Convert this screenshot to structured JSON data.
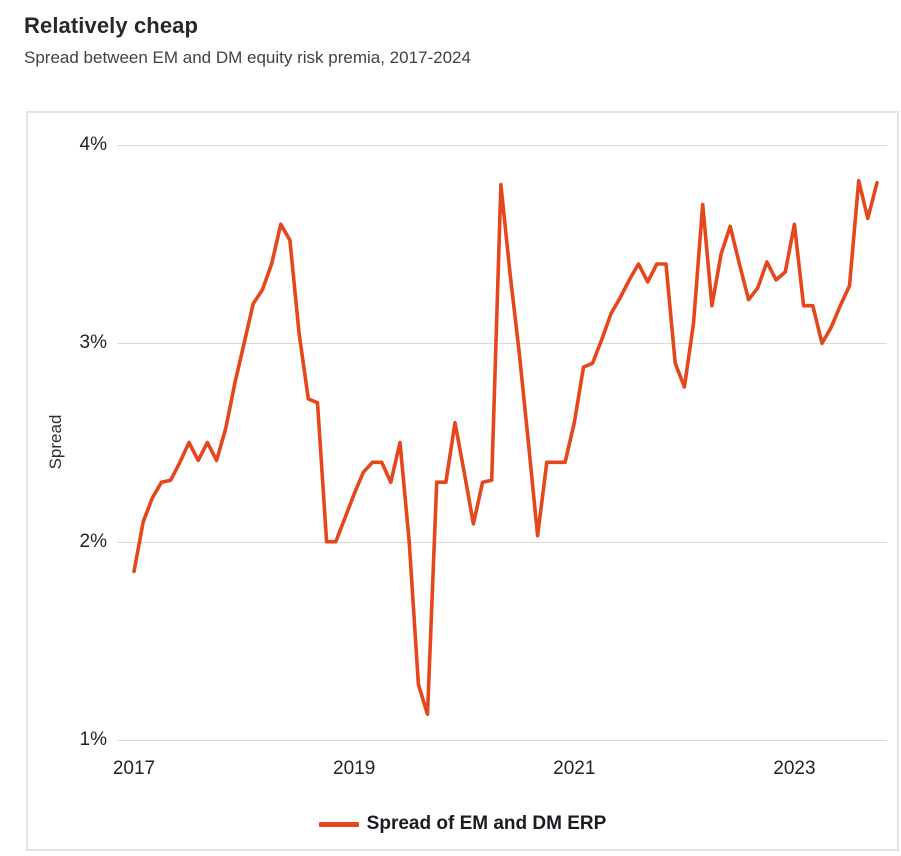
{
  "header": {
    "title": "Relatively cheap",
    "subtitle": "Spread between EM and DM equity risk premia, 2017-2024"
  },
  "chart_data": {
    "type": "line",
    "title": "Relatively cheap",
    "subtitle": "Spread between EM and DM equity risk premia, 2017-2024",
    "xlabel": "",
    "ylabel": "Spread",
    "unit": "%",
    "ylim": [
      1,
      4
    ],
    "grid": "horizontal-only",
    "y_ticks": [
      {
        "label": "4%",
        "value": 4
      },
      {
        "label": "3%",
        "value": 3
      },
      {
        "label": "2%",
        "value": 2
      },
      {
        "label": "1%",
        "value": 1
      }
    ],
    "x_ticks": [
      {
        "label": "2017",
        "month_index": 0
      },
      {
        "label": "2019",
        "month_index": 24
      },
      {
        "label": "2021",
        "month_index": 48
      },
      {
        "label": "2023",
        "month_index": 72
      }
    ],
    "x_description": "monthly points starting January 2017",
    "legend": {
      "position": "bottom",
      "label": "Spread of EM and DM ERP"
    },
    "series": [
      {
        "name": "Spread of EM and DM ERP",
        "color": "#e5471d",
        "values": [
          1.85,
          2.1,
          2.22,
          2.3,
          2.31,
          2.4,
          2.5,
          2.41,
          2.5,
          2.41,
          2.57,
          2.8,
          3.0,
          3.2,
          3.27,
          3.4,
          3.6,
          3.52,
          3.05,
          2.72,
          2.7,
          2.0,
          2.0,
          2.12,
          2.24,
          2.35,
          2.4,
          2.4,
          2.3,
          2.5,
          2.0,
          1.28,
          1.13,
          2.3,
          2.3,
          2.6,
          2.35,
          2.09,
          2.3,
          2.31,
          3.8,
          3.35,
          2.95,
          2.5,
          2.03,
          2.4,
          2.4,
          2.4,
          2.6,
          2.88,
          2.9,
          3.02,
          3.15,
          3.23,
          3.32,
          3.4,
          3.31,
          3.4,
          3.4,
          2.9,
          2.78,
          3.1,
          3.7,
          3.19,
          3.45,
          3.59,
          3.4,
          3.22,
          3.28,
          3.41,
          3.32,
          3.36,
          3.6,
          3.19,
          3.19,
          3.0,
          3.08,
          3.19,
          3.29,
          3.82,
          3.63,
          3.81
        ]
      }
    ]
  }
}
